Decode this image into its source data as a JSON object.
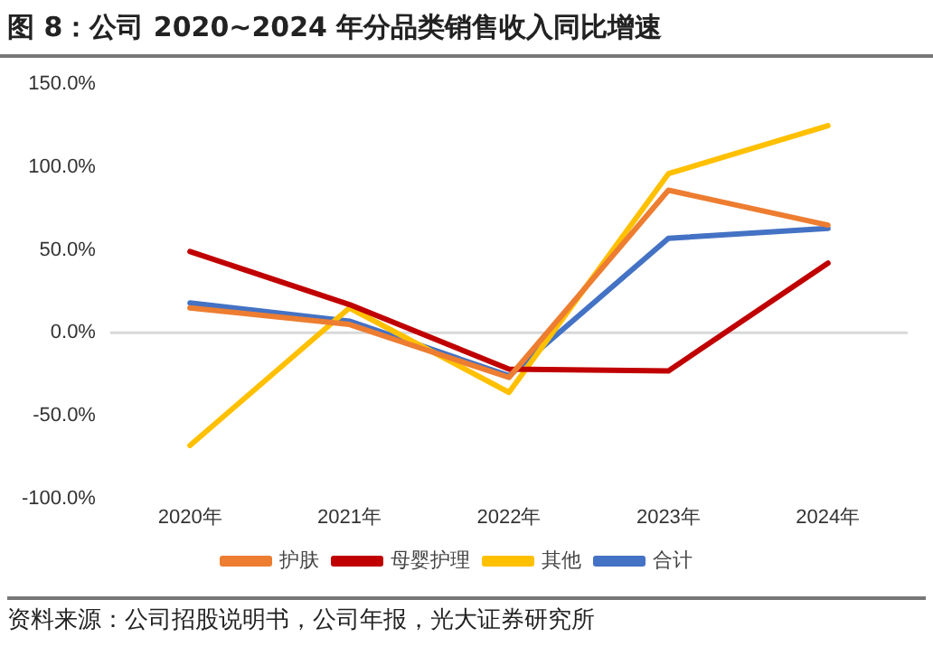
{
  "chart_data": {
    "type": "line",
    "title": "图 8：公司 2020~2024 年分品类销售收入同比增速",
    "categories": [
      "2020年",
      "2021年",
      "2022年",
      "2023年",
      "2024年"
    ],
    "series": [
      {
        "name": "护肤",
        "color": "#ed7d31",
        "values": [
          15,
          5,
          -27,
          86,
          65
        ]
      },
      {
        "name": "母婴护理",
        "color": "#c00000",
        "values": [
          49,
          17,
          -22,
          -23,
          42
        ]
      },
      {
        "name": "其他",
        "color": "#ffc000",
        "values": [
          -68,
          15,
          -36,
          96,
          125
        ]
      },
      {
        "name": "合计",
        "color": "#4472c4",
        "values": [
          18,
          7,
          -26,
          57,
          63
        ]
      }
    ],
    "ylim": [
      -100,
      150
    ],
    "yticks": [
      {
        "value": -100,
        "label": "-100.0%"
      },
      {
        "value": -50,
        "label": "-50.0%"
      },
      {
        "value": 0,
        "label": "0.0%"
      },
      {
        "value": 50,
        "label": "50.0%"
      },
      {
        "value": 100,
        "label": "100.0%"
      },
      {
        "value": 150,
        "label": "150.0%"
      }
    ],
    "ref_lines": [
      {
        "axis": "y",
        "value": 0,
        "color": "#d9d9d9"
      }
    ],
    "grid": false,
    "legend": "bottom",
    "marker": "none",
    "line_style": "solid",
    "annotations": [
      "资料来源：公司招股说明书，公司年报，光大证券研究所"
    ]
  }
}
